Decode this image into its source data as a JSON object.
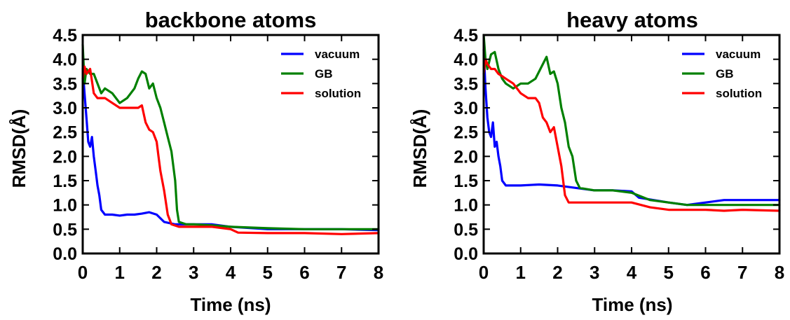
{
  "chart_data": [
    {
      "type": "line",
      "title": "backbone atoms",
      "xlabel": "Time (ns)",
      "ylabel": "RMSD(Å)",
      "xlim": [
        0,
        8
      ],
      "ylim": [
        0,
        4.5
      ],
      "xticks": [
        "0",
        "1",
        "2",
        "3",
        "4",
        "5",
        "6",
        "7",
        "8"
      ],
      "yticks": [
        "0.0",
        "0.5",
        "1.0",
        "1.5",
        "2.0",
        "2.5",
        "3.0",
        "3.5",
        "4.0",
        "4.5"
      ],
      "legend_position": "top-right",
      "grid": false,
      "series": [
        {
          "name": "vacuum",
          "color": "#0000ff",
          "points": [
            [
              0,
              3.8
            ],
            [
              0.05,
              3.3
            ],
            [
              0.1,
              2.8
            ],
            [
              0.15,
              2.3
            ],
            [
              0.2,
              2.2
            ],
            [
              0.25,
              2.4
            ],
            [
              0.3,
              2.0
            ],
            [
              0.35,
              1.7
            ],
            [
              0.4,
              1.4
            ],
            [
              0.45,
              1.2
            ],
            [
              0.5,
              0.9
            ],
            [
              0.6,
              0.8
            ],
            [
              0.8,
              0.8
            ],
            [
              1.0,
              0.78
            ],
            [
              1.2,
              0.8
            ],
            [
              1.4,
              0.8
            ],
            [
              1.6,
              0.82
            ],
            [
              1.8,
              0.85
            ],
            [
              2.0,
              0.8
            ],
            [
              2.2,
              0.65
            ],
            [
              2.5,
              0.6
            ],
            [
              3.0,
              0.6
            ],
            [
              3.5,
              0.6
            ],
            [
              4.0,
              0.55
            ],
            [
              5.0,
              0.5
            ],
            [
              6.0,
              0.5
            ],
            [
              7.0,
              0.5
            ],
            [
              8.0,
              0.48
            ]
          ]
        },
        {
          "name": "GB",
          "color": "#008000",
          "points": [
            [
              0,
              4.3
            ],
            [
              0.05,
              3.5
            ],
            [
              0.1,
              3.8
            ],
            [
              0.2,
              3.7
            ],
            [
              0.3,
              3.7
            ],
            [
              0.4,
              3.5
            ],
            [
              0.5,
              3.3
            ],
            [
              0.6,
              3.4
            ],
            [
              0.8,
              3.3
            ],
            [
              1.0,
              3.1
            ],
            [
              1.2,
              3.2
            ],
            [
              1.4,
              3.4
            ],
            [
              1.5,
              3.6
            ],
            [
              1.6,
              3.75
            ],
            [
              1.7,
              3.7
            ],
            [
              1.8,
              3.4
            ],
            [
              1.9,
              3.5
            ],
            [
              2.0,
              3.2
            ],
            [
              2.1,
              3.0
            ],
            [
              2.2,
              2.7
            ],
            [
              2.3,
              2.4
            ],
            [
              2.4,
              2.1
            ],
            [
              2.5,
              1.5
            ],
            [
              2.55,
              0.9
            ],
            [
              2.6,
              0.65
            ],
            [
              2.8,
              0.6
            ],
            [
              3.0,
              0.6
            ],
            [
              3.5,
              0.58
            ],
            [
              4.0,
              0.55
            ],
            [
              5.0,
              0.52
            ],
            [
              6.0,
              0.5
            ],
            [
              7.0,
              0.5
            ],
            [
              8.0,
              0.5
            ]
          ]
        },
        {
          "name": "solution",
          "color": "#ff0000",
          "points": [
            [
              0,
              3.6
            ],
            [
              0.05,
              3.85
            ],
            [
              0.1,
              3.7
            ],
            [
              0.2,
              3.8
            ],
            [
              0.3,
              3.3
            ],
            [
              0.4,
              3.2
            ],
            [
              0.6,
              3.2
            ],
            [
              0.8,
              3.1
            ],
            [
              1.0,
              3.0
            ],
            [
              1.2,
              3.0
            ],
            [
              1.4,
              3.0
            ],
            [
              1.5,
              3.0
            ],
            [
              1.6,
              3.05
            ],
            [
              1.7,
              2.7
            ],
            [
              1.8,
              2.55
            ],
            [
              1.9,
              2.5
            ],
            [
              2.0,
              2.3
            ],
            [
              2.05,
              2.0
            ],
            [
              2.1,
              1.7
            ],
            [
              2.2,
              1.3
            ],
            [
              2.3,
              0.8
            ],
            [
              2.4,
              0.6
            ],
            [
              2.6,
              0.55
            ],
            [
              3.0,
              0.55
            ],
            [
              3.5,
              0.55
            ],
            [
              4.0,
              0.5
            ],
            [
              4.2,
              0.43
            ],
            [
              5.0,
              0.42
            ],
            [
              6.0,
              0.42
            ],
            [
              7.0,
              0.4
            ],
            [
              8.0,
              0.42
            ]
          ]
        }
      ]
    },
    {
      "type": "line",
      "title": "heavy atoms",
      "xlabel": "Time (ns)",
      "ylabel": "RMSD(Å)",
      "xlim": [
        0,
        8
      ],
      "ylim": [
        0,
        4.5
      ],
      "xticks": [
        "0",
        "1",
        "2",
        "3",
        "4",
        "5",
        "6",
        "7",
        "8"
      ],
      "yticks": [
        "0.0",
        "0.5",
        "1.0",
        "1.5",
        "2.0",
        "2.5",
        "3.0",
        "3.5",
        "4.0",
        "4.5"
      ],
      "legend_position": "top-right",
      "grid": false,
      "series": [
        {
          "name": "vacuum",
          "color": "#0000ff",
          "points": [
            [
              0,
              4.2
            ],
            [
              0.05,
              3.4
            ],
            [
              0.1,
              2.8
            ],
            [
              0.15,
              2.5
            ],
            [
              0.2,
              2.4
            ],
            [
              0.25,
              2.7
            ],
            [
              0.3,
              2.2
            ],
            [
              0.35,
              2.3
            ],
            [
              0.4,
              2.0
            ],
            [
              0.45,
              1.8
            ],
            [
              0.5,
              1.5
            ],
            [
              0.6,
              1.4
            ],
            [
              1.0,
              1.4
            ],
            [
              1.5,
              1.42
            ],
            [
              2.0,
              1.4
            ],
            [
              2.5,
              1.35
            ],
            [
              3.0,
              1.3
            ],
            [
              3.5,
              1.3
            ],
            [
              4.0,
              1.28
            ],
            [
              4.2,
              1.15
            ],
            [
              5.0,
              1.05
            ],
            [
              5.5,
              1.0
            ],
            [
              6.0,
              1.05
            ],
            [
              6.5,
              1.1
            ],
            [
              7.0,
              1.1
            ],
            [
              8.0,
              1.1
            ]
          ]
        },
        {
          "name": "GB",
          "color": "#008000",
          "points": [
            [
              0,
              4.5
            ],
            [
              0.05,
              4.0
            ],
            [
              0.1,
              3.8
            ],
            [
              0.2,
              4.1
            ],
            [
              0.3,
              4.15
            ],
            [
              0.4,
              3.8
            ],
            [
              0.5,
              3.6
            ],
            [
              0.6,
              3.5
            ],
            [
              0.8,
              3.4
            ],
            [
              1.0,
              3.5
            ],
            [
              1.2,
              3.5
            ],
            [
              1.4,
              3.6
            ],
            [
              1.6,
              3.9
            ],
            [
              1.7,
              4.05
            ],
            [
              1.8,
              3.7
            ],
            [
              1.9,
              3.75
            ],
            [
              2.0,
              3.5
            ],
            [
              2.1,
              3.0
            ],
            [
              2.2,
              2.7
            ],
            [
              2.3,
              2.2
            ],
            [
              2.4,
              2.0
            ],
            [
              2.5,
              1.5
            ],
            [
              2.6,
              1.35
            ],
            [
              3.0,
              1.3
            ],
            [
              3.5,
              1.3
            ],
            [
              4.0,
              1.25
            ],
            [
              4.5,
              1.1
            ],
            [
              5.0,
              1.05
            ],
            [
              5.5,
              1.0
            ],
            [
              6.0,
              1.0
            ],
            [
              7.0,
              1.0
            ],
            [
              8.0,
              1.0
            ]
          ]
        },
        {
          "name": "solution",
          "color": "#ff0000",
          "points": [
            [
              0,
              3.7
            ],
            [
              0.05,
              4.0
            ],
            [
              0.1,
              3.9
            ],
            [
              0.2,
              3.8
            ],
            [
              0.3,
              3.8
            ],
            [
              0.4,
              3.7
            ],
            [
              0.5,
              3.65
            ],
            [
              0.6,
              3.6
            ],
            [
              0.8,
              3.5
            ],
            [
              1.0,
              3.3
            ],
            [
              1.2,
              3.2
            ],
            [
              1.4,
              3.2
            ],
            [
              1.5,
              3.1
            ],
            [
              1.6,
              2.8
            ],
            [
              1.7,
              2.7
            ],
            [
              1.8,
              2.5
            ],
            [
              1.9,
              2.6
            ],
            [
              2.0,
              2.2
            ],
            [
              2.1,
              1.8
            ],
            [
              2.2,
              1.2
            ],
            [
              2.3,
              1.05
            ],
            [
              2.5,
              1.05
            ],
            [
              3.0,
              1.05
            ],
            [
              3.5,
              1.05
            ],
            [
              4.0,
              1.05
            ],
            [
              4.5,
              0.95
            ],
            [
              5.0,
              0.9
            ],
            [
              5.5,
              0.9
            ],
            [
              6.0,
              0.9
            ],
            [
              6.5,
              0.88
            ],
            [
              7.0,
              0.9
            ],
            [
              8.0,
              0.88
            ]
          ]
        }
      ]
    }
  ]
}
